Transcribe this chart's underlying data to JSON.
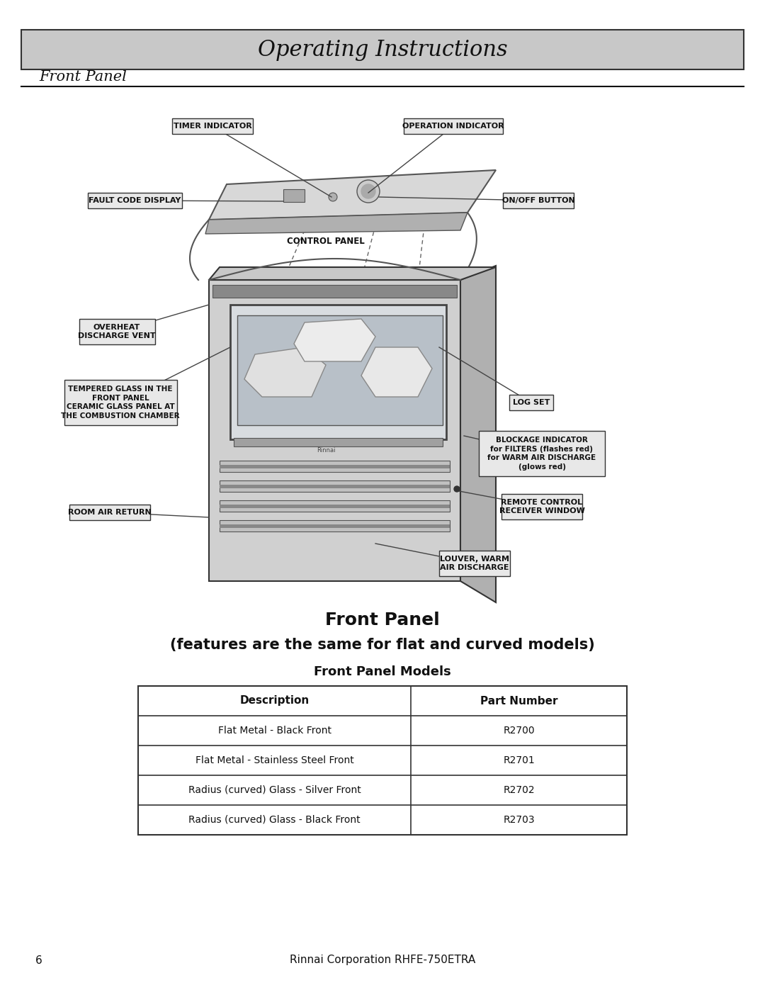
{
  "page_width": 10.8,
  "page_height": 13.97,
  "dpi": 100,
  "bg_color": "#ffffff",
  "header_bg": "#c8c8c8",
  "header_text": "Operating Instructions",
  "header_fontsize": 22,
  "section_title": "Front Panel",
  "section_fontsize": 15,
  "diagram_title": "Front Panel",
  "diagram_subtitle": "(features are the same for flat and curved models)",
  "table_title": "Front Panel Models",
  "table_headers": [
    "Description",
    "Part Number"
  ],
  "table_rows": [
    [
      "Flat Metal - Black Front",
      "R2700"
    ],
    [
      "Flat Metal - Stainless Steel Front",
      "R2701"
    ],
    [
      "Radius (curved) Glass - Silver Front",
      "R2702"
    ],
    [
      "Radius (curved) Glass - Black Front",
      "R2703"
    ]
  ],
  "footer_page": "6",
  "footer_text": "Rinnai Corporation RHFE-750ETRA"
}
